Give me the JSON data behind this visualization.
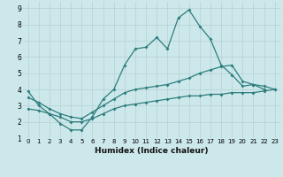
{
  "xlabel": "Humidex (Indice chaleur)",
  "bg_color": "#cce8ea",
  "grid_color": "#b8d4d8",
  "line_color": "#2d7d7d",
  "xlim": [
    -0.5,
    23.5
  ],
  "ylim": [
    1,
    9.4
  ],
  "xticks": [
    0,
    1,
    2,
    3,
    4,
    5,
    6,
    7,
    8,
    9,
    10,
    11,
    12,
    13,
    14,
    15,
    16,
    17,
    18,
    19,
    20,
    21,
    22,
    23
  ],
  "yticks": [
    1,
    2,
    3,
    4,
    5,
    6,
    7,
    8,
    9
  ],
  "line1_x": [
    0,
    1,
    2,
    3,
    4,
    5,
    6,
    7,
    8,
    9,
    10,
    11,
    12,
    13,
    14,
    15,
    16,
    17,
    18,
    19,
    20,
    21,
    22
  ],
  "line1_y": [
    3.9,
    3.0,
    2.5,
    1.9,
    1.5,
    1.5,
    2.3,
    3.4,
    4.0,
    5.5,
    6.5,
    6.6,
    7.2,
    6.5,
    8.4,
    8.9,
    7.9,
    7.1,
    5.5,
    4.9,
    4.2,
    4.3,
    4.0
  ],
  "line2_x": [
    0,
    1,
    2,
    3,
    4,
    5,
    6,
    7,
    8,
    9,
    10,
    11,
    12,
    13,
    14,
    15,
    16,
    17,
    18,
    19,
    20,
    21,
    22,
    23
  ],
  "line2_y": [
    3.5,
    3.2,
    2.8,
    2.5,
    2.3,
    2.2,
    2.6,
    3.0,
    3.4,
    3.8,
    4.0,
    4.1,
    4.2,
    4.3,
    4.5,
    4.7,
    5.0,
    5.2,
    5.4,
    5.5,
    4.5,
    4.3,
    4.2,
    4.0
  ],
  "line3_x": [
    0,
    1,
    2,
    3,
    4,
    5,
    6,
    7,
    8,
    9,
    10,
    11,
    12,
    13,
    14,
    15,
    16,
    17,
    18,
    19,
    20,
    21,
    22,
    23
  ],
  "line3_y": [
    2.8,
    2.7,
    2.5,
    2.3,
    2.0,
    2.0,
    2.2,
    2.5,
    2.8,
    3.0,
    3.1,
    3.2,
    3.3,
    3.4,
    3.5,
    3.6,
    3.6,
    3.7,
    3.7,
    3.8,
    3.8,
    3.8,
    3.9,
    4.0
  ]
}
